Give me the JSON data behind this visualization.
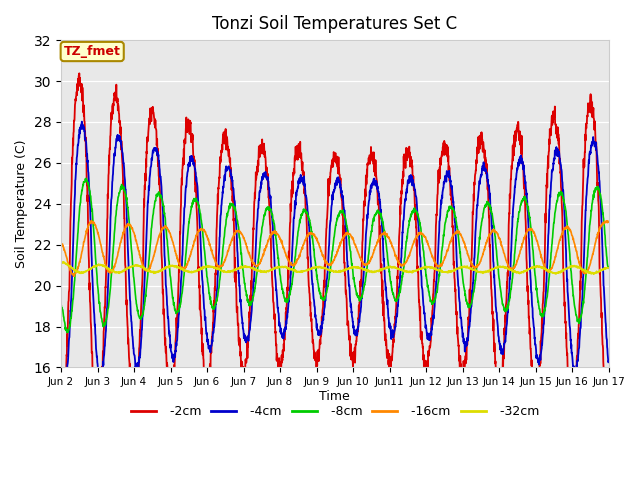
{
  "title": "Tonzi Soil Temperatures Set C",
  "xlabel": "Time",
  "ylabel": "Soil Temperature (C)",
  "ylim": [
    16,
    32
  ],
  "background_color": "#e8e8e8",
  "annotation_text": "TZ_fmet",
  "annotation_bg": "#ffffcc",
  "annotation_border": "#aa8800",
  "series": [
    {
      "label": "-2cm",
      "color": "#dd0000"
    },
    {
      "label": "-4cm",
      "color": "#0000cc"
    },
    {
      "label": "-8cm",
      "color": "#00cc00"
    },
    {
      "label": "-16cm",
      "color": "#ff8800"
    },
    {
      "label": "-32cm",
      "color": "#dddd00"
    }
  ],
  "x_tick_labels": [
    "Jun 2",
    "Jun 3",
    "Jun 4",
    "Jun 5",
    "Jun 6",
    "Jun 7",
    "Jun 8",
    "Jun 9",
    "Jun 10",
    "Jun11",
    "Jun 12",
    "Jun 13",
    "Jun 14",
    "Jun 15",
    "Jun 16",
    "Jun 17"
  ],
  "x_tick_positions": [
    0,
    1,
    2,
    3,
    4,
    5,
    6,
    7,
    8,
    9,
    10,
    11,
    12,
    13,
    14,
    15
  ],
  "yticks": [
    16,
    18,
    20,
    22,
    24,
    26,
    28,
    30,
    32
  ],
  "legend_entries": [
    {
      "label": " -2cm",
      "color": "#dd0000"
    },
    {
      "label": " -4cm",
      "color": "#0000cc"
    },
    {
      "label": " -8cm",
      "color": "#00cc00"
    },
    {
      "label": " -16cm",
      "color": "#ff8800"
    },
    {
      "label": " -32cm",
      "color": "#dddd00"
    }
  ]
}
